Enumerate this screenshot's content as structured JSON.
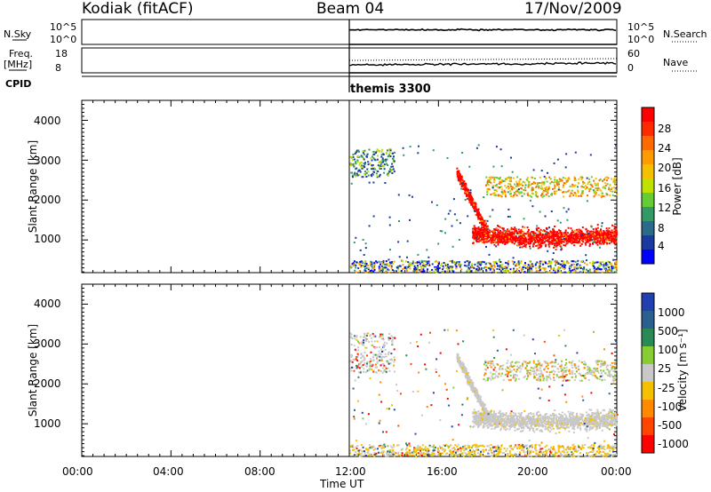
{
  "header": {
    "station": "Kodiak (fitACF)",
    "beam": "Beam 04",
    "date": "17/Nov/2009"
  },
  "params": {
    "nsky_label": "N.Sky",
    "nsky_ticks": [
      "10^5",
      "10^0"
    ],
    "nsearch_label": "N.Search",
    "nsearch_ticks": [
      "10^5",
      "10^0"
    ],
    "freq_label": "Freq.",
    "freq_unit": "[MHz]",
    "freq_ticks": [
      "18",
      "8"
    ],
    "nave_label": "Nave",
    "nave_ticks": [
      "60",
      "0"
    ],
    "cpid_label": "CPID",
    "cpid_value": "themis 3300"
  },
  "power_colorbar": {
    "label": "Power [dB]",
    "ticks": [
      "28",
      "24",
      "20",
      "16",
      "12",
      "8",
      "4"
    ],
    "colors": [
      "#ff0000",
      "#ff2a00",
      "#ff6a00",
      "#ff9a00",
      "#f4c000",
      "#c0e000",
      "#66cc33",
      "#339966",
      "#2a6a8a",
      "#1a3aa0",
      "#0000ff"
    ]
  },
  "velocity_colorbar": {
    "label": "Velocity [m s⁻¹]",
    "ticks": [
      "1000",
      "500",
      "100",
      "25",
      "-25",
      "-100",
      "-500",
      "-1000"
    ],
    "colors": [
      "#2040b0",
      "#2a6090",
      "#2a8a55",
      "#88cc33",
      "#c8c8c8",
      "#f5c000",
      "#ff8a00",
      "#ff4500",
      "#ff0000"
    ]
  },
  "chart_data": [
    {
      "type": "heatmap",
      "variable": "power",
      "xlabel": "Time UT",
      "ylabel": "Slant Range [km]",
      "x_ticks": [
        "00:00",
        "04:00",
        "08:00",
        "12:00",
        "16:00",
        "20:00",
        "00:00"
      ],
      "xlim_hours": [
        0,
        24
      ],
      "y_ticks": [
        1000,
        2000,
        3000,
        4000
      ],
      "ylim_km": [
        180,
        4500
      ],
      "data_start_hour": 12,
      "features": [
        {
          "name": "near-range band",
          "t": [
            12.0,
            24.0
          ],
          "range_km": [
            200,
            500
          ],
          "level": "low-mixed"
        },
        {
          "name": "early cluster",
          "t": [
            12.0,
            14.0
          ],
          "range_km": [
            2600,
            3300
          ],
          "level": "weak"
        },
        {
          "name": "descending band",
          "t": [
            16.8,
            18.2
          ],
          "range_km": [
            900,
            2700
          ],
          "level": "strong"
        },
        {
          "name": "main echo band",
          "t": [
            17.5,
            24.0
          ],
          "range_km": [
            800,
            1500
          ],
          "level": "strong"
        },
        {
          "name": "upper band",
          "t": [
            18.0,
            24.0
          ],
          "range_km": [
            2100,
            2600
          ],
          "level": "moderate"
        }
      ]
    },
    {
      "type": "heatmap",
      "variable": "velocity",
      "xlabel": "Time UT",
      "ylabel": "Slant Range [km]",
      "x_ticks": [
        "00:00",
        "04:00",
        "08:00",
        "12:00",
        "16:00",
        "20:00",
        "00:00"
      ],
      "xlim_hours": [
        0,
        24
      ],
      "y_ticks": [
        1000,
        2000,
        3000,
        4000
      ],
      "ylim_km": [
        180,
        4500
      ],
      "data_start_hour": 12,
      "features": [
        {
          "name": "near-range band",
          "t": [
            12.0,
            24.0
          ],
          "range_km": [
            200,
            500
          ],
          "level": "ground-scatter"
        },
        {
          "name": "early cluster",
          "t": [
            12.0,
            14.0
          ],
          "range_km": [
            2300,
            3300
          ],
          "level": "ground-scatter"
        },
        {
          "name": "descending band",
          "t": [
            16.8,
            18.2
          ],
          "range_km": [
            900,
            2700
          ],
          "level": "ground-scatter"
        },
        {
          "name": "main echo band",
          "t": [
            17.5,
            24.0
          ],
          "range_km": [
            800,
            1500
          ],
          "level": "ground-scatter"
        },
        {
          "name": "upper band",
          "t": [
            18.0,
            24.0
          ],
          "range_km": [
            2100,
            2600
          ],
          "level": "mixed"
        }
      ]
    }
  ]
}
